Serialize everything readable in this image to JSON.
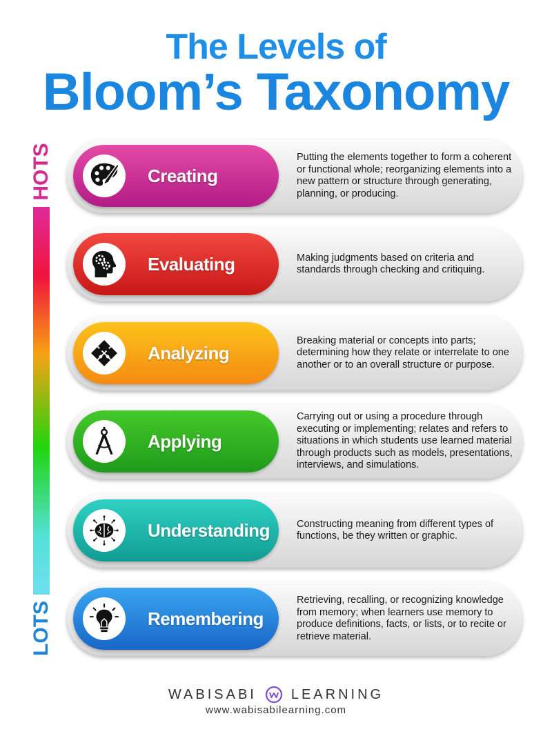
{
  "title": {
    "line1": "The Levels of",
    "line2": "Bloom’s Taxonomy"
  },
  "scale": {
    "top_label": "HOTS",
    "bottom_label": "LOTS"
  },
  "levels": [
    {
      "label": "Creating",
      "icon": "palette-brush-icon",
      "color_start": "#e44aa6",
      "color_end": "#b21c86",
      "description": "Putting the elements together to form a coherent or functional whole; reorganizing elements into a new pattern or structure through generating, planning, or producing."
    },
    {
      "label": "Evaluating",
      "icon": "head-gears-icon",
      "color_start": "#f2473f",
      "color_end": "#c71818",
      "description": "Making judgments based on criteria and standards through checking and critiquing."
    },
    {
      "label": "Analyzing",
      "icon": "puzzle-icon",
      "color_start": "#fcc21a",
      "color_end": "#f58a12",
      "description": "Breaking material or concepts into parts; determining how they relate or interrelate to one another or to an overall structure or purpose."
    },
    {
      "label": "Applying",
      "icon": "compass-icon",
      "color_start": "#45c92a",
      "color_end": "#1f9a1a",
      "description": "Carrying out or using a procedure through executing or implementing; relates and refers to situations in which students use learned material through products such as models, presentations, interviews, and simulations."
    },
    {
      "label": "Understanding",
      "icon": "brain-icon",
      "color_start": "#2fd1c4",
      "color_end": "#119c93",
      "description": "Constructing meaning from different types of functions, be they written or graphic."
    },
    {
      "label": "Remembering",
      "icon": "lightbulb-icon",
      "color_start": "#3aa4ef",
      "color_end": "#1867c8",
      "description": "Retrieving, recalling, or recognizing knowledge from memory; when learners use memory to produce definitions, facts, or lists, or to recite or retrieve material."
    }
  ],
  "footer": {
    "brand_left": "WABISABI",
    "brand_right": "LEARNING",
    "url": "www.wabisabilearning.com"
  }
}
